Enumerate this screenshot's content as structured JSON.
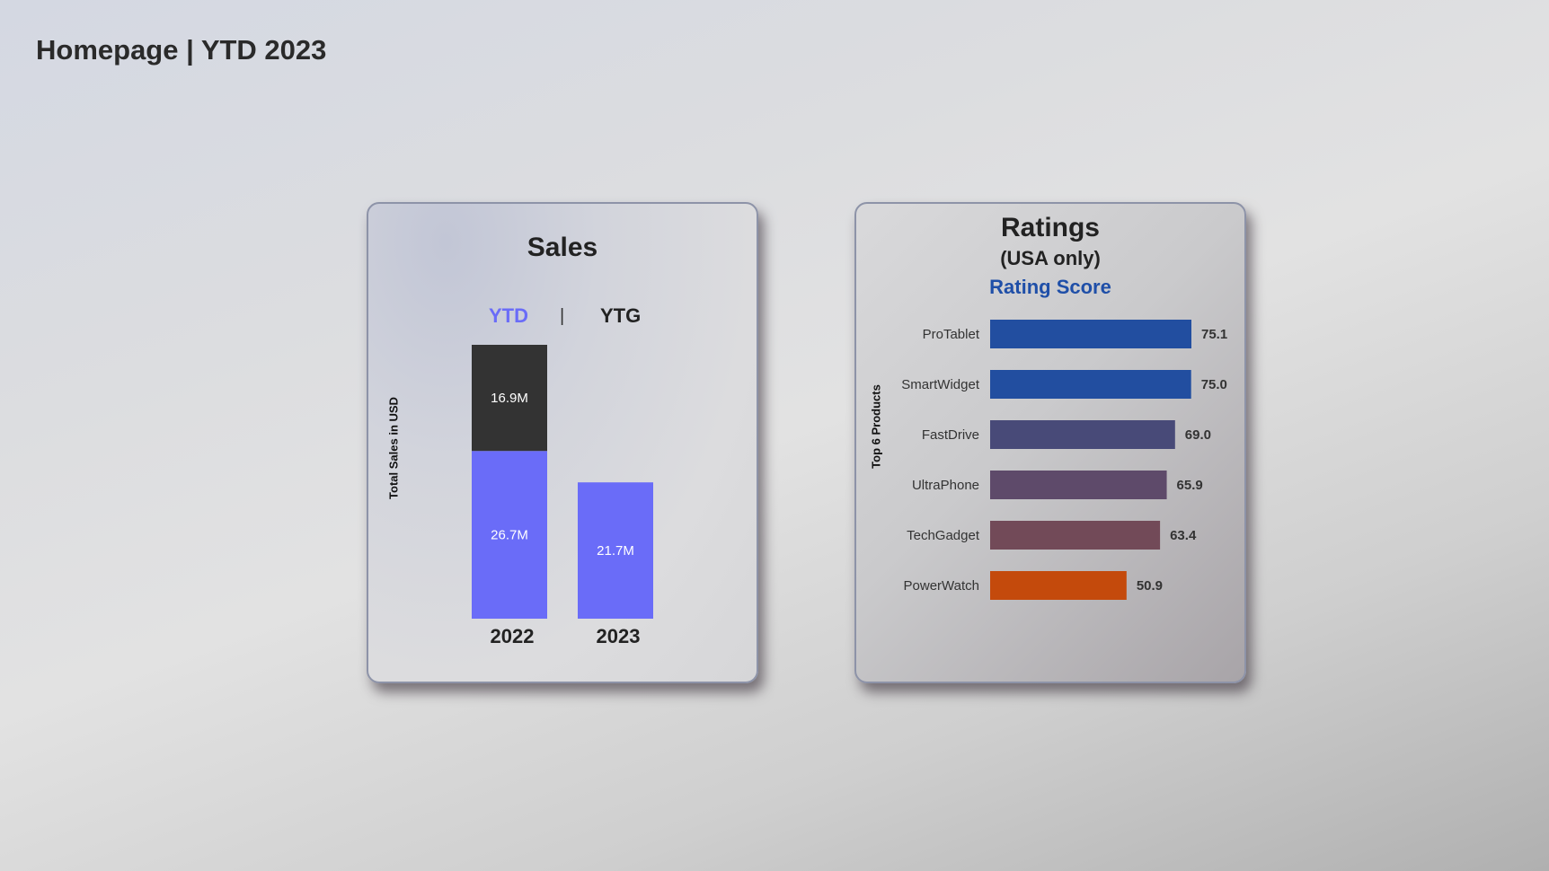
{
  "page": {
    "title": "Homepage | YTD 2023"
  },
  "sales_card": {
    "title": "Sales",
    "toggle": {
      "ytd": "YTD",
      "separator": "|",
      "ytg": "YTG"
    },
    "ylabel": "Total Sales in USD"
  },
  "ratings_card": {
    "title": "Ratings",
    "subtitle": "(USA only)",
    "metric": "Rating Score",
    "ylabel": "Top 6 Products"
  },
  "colors": {
    "ytd": "#6a6cf8",
    "ytg": "#333333",
    "metric_title": "#1f4fa8"
  },
  "chart_data": [
    {
      "type": "bar",
      "stacked": true,
      "categories": [
        "2022",
        "2023"
      ],
      "series": [
        {
          "name": "YTD",
          "values": [
            26.7,
            21.7
          ],
          "labels": [
            "26.7M",
            "21.7M"
          ],
          "color": "#6a6cf8"
        },
        {
          "name": "YTG",
          "values": [
            16.9,
            null
          ],
          "labels": [
            "16.9M",
            ""
          ],
          "color": "#333333"
        }
      ],
      "ylabel": "Total Sales in USD",
      "ylim": [
        0,
        43.6
      ]
    },
    {
      "type": "bar",
      "orientation": "horizontal",
      "categories": [
        "ProTablet",
        "SmartWidget",
        "FastDrive",
        "UltraPhone",
        "TechGadget",
        "PowerWatch"
      ],
      "values": [
        75.1,
        75.0,
        69.0,
        65.9,
        63.4,
        50.9
      ],
      "labels": [
        "75.1",
        "75.0",
        "69.0",
        "65.9",
        "63.4",
        "50.9"
      ],
      "colors": [
        "#224ea0",
        "#224ea0",
        "#484a78",
        "#5e4a6a",
        "#724a58",
        "#c44a0c"
      ],
      "ylabel": "Top 6 Products",
      "xlim": [
        0,
        75.1
      ]
    }
  ]
}
